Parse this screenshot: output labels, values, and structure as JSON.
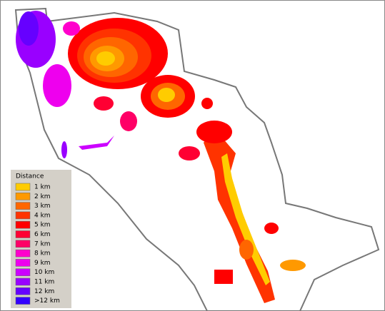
{
  "legend": {
    "title": "Distance",
    "items": [
      {
        "label": "1 km",
        "color": "#ffcc00"
      },
      {
        "label": "2 km",
        "color": "#ff9900"
      },
      {
        "label": "3 km",
        "color": "#ff6600"
      },
      {
        "label": "4 km",
        "color": "#ff3300"
      },
      {
        "label": "5 km",
        "color": "#ff0000"
      },
      {
        "label": "6 km",
        "color": "#ff0033"
      },
      {
        "label": "7 km",
        "color": "#ff0066"
      },
      {
        "label": "8 km",
        "color": "#ff00cc"
      },
      {
        "label": "9 km",
        "color": "#ee00ee"
      },
      {
        "label": "10 km",
        "color": "#cc00ff"
      },
      {
        "label": "11 km",
        "color": "#9900ff"
      },
      {
        "label": "12 km",
        "color": "#6600ff"
      },
      {
        "label": ">12 km",
        "color": "#3300ff"
      }
    ]
  }
}
